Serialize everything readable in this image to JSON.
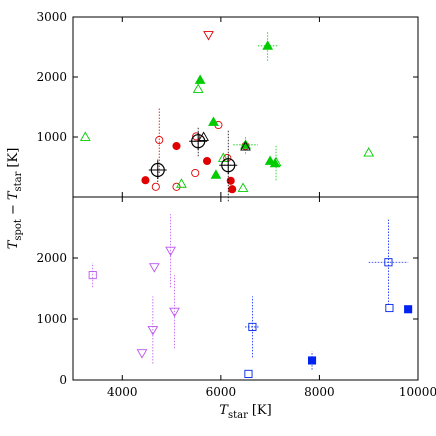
{
  "chart_data": {
    "type": "scatter",
    "xlabel": "T",
    "xlabel_sub": "star",
    "xlabel_unit": "[K]",
    "ylabel_parts": [
      "T",
      "spot",
      "−",
      "T",
      "star",
      "[K]"
    ],
    "xlim": [
      3000,
      10000
    ],
    "x_ticks": [
      4000,
      6000,
      8000,
      10000
    ],
    "panels": [
      {
        "name": "top",
        "ylim": [
          0,
          3000
        ],
        "y_ticks": [
          1000,
          2000,
          3000
        ],
        "series": [
          {
            "name": "red",
            "color": "#e00000",
            "points": [
              {
                "x": 4470,
                "y": 280,
                "marker": "circle",
                "filled": true
              },
              {
                "x": 5100,
                "y": 850,
                "marker": "circle",
                "filled": true
              },
              {
                "x": 5720,
                "y": 600,
                "marker": "circle",
                "filled": true
              },
              {
                "x": 6200,
                "y": 270,
                "marker": "circle",
                "filled": true
              },
              {
                "x": 6230,
                "y": 130,
                "marker": "circle",
                "filled": true
              },
              {
                "x": 4750,
                "y": 950,
                "marker": "circle",
                "filled": false,
                "yerr": 550
              },
              {
                "x": 4680,
                "y": 170,
                "marker": "circle",
                "filled": false
              },
              {
                "x": 5100,
                "y": 170,
                "marker": "circle",
                "filled": false
              },
              {
                "x": 5480,
                "y": 400,
                "marker": "circle",
                "filled": false
              },
              {
                "x": 5500,
                "y": 1010,
                "marker": "circle",
                "filled": false
              },
              {
                "x": 5750,
                "y": 2700,
                "marker": "triangle-down",
                "filled": false
              },
              {
                "x": 5950,
                "y": 1200,
                "marker": "circle",
                "filled": false
              },
              {
                "x": 6130,
                "y": 650,
                "marker": "circle",
                "filled": false
              },
              {
                "x": 6500,
                "y": 850,
                "marker": "circle",
                "filled": false
              }
            ]
          },
          {
            "name": "green",
            "color": "#00cc00",
            "points": [
              {
                "x": 5580,
                "y": 1950,
                "marker": "triangle",
                "filled": true
              },
              {
                "x": 5850,
                "y": 1250,
                "marker": "triangle",
                "filled": true
              },
              {
                "x": 5900,
                "y": 370,
                "marker": "triangle",
                "filled": true
              },
              {
                "x": 6950,
                "y": 2520,
                "marker": "triangle",
                "filled": true,
                "xerr": 200,
                "yerr": 250
              },
              {
                "x": 7000,
                "y": 600,
                "marker": "triangle",
                "filled": true
              },
              {
                "x": 7100,
                "y": 560,
                "marker": "triangle",
                "filled": true
              },
              {
                "x": 6500,
                "y": 870,
                "marker": "triangle",
                "filled": true,
                "xerr": 250,
                "yerr": 150
              },
              {
                "x": 3250,
                "y": 1000,
                "marker": "triangle",
                "filled": false
              },
              {
                "x": 5540,
                "y": 1800,
                "marker": "triangle",
                "filled": false
              },
              {
                "x": 5200,
                "y": 220,
                "marker": "triangle",
                "filled": false
              },
              {
                "x": 6450,
                "y": 150,
                "marker": "triangle",
                "filled": false
              },
              {
                "x": 6050,
                "y": 650,
                "marker": "triangle",
                "filled": false
              },
              {
                "x": 7120,
                "y": 580,
                "marker": "triangle",
                "filled": false,
                "yerr": 300
              },
              {
                "x": 9000,
                "y": 740,
                "marker": "triangle",
                "filled": false
              }
            ]
          },
          {
            "name": "black",
            "color": "#000000",
            "points": [
              {
                "x": 4720,
                "y": 450,
                "marker": "target",
                "filled": false,
                "xerr": 150,
                "yerr": 200
              },
              {
                "x": 5540,
                "y": 930,
                "marker": "target",
                "filled": false,
                "xerr": 150,
                "yerr": 250
              },
              {
                "x": 6150,
                "y": 530,
                "marker": "target",
                "filled": false,
                "xerr": 150,
                "yerr": 600
              },
              {
                "x": 5650,
                "y": 1000,
                "marker": "triangle",
                "filled": false
              },
              {
                "x": 6500,
                "y": 840,
                "marker": "triangle",
                "filled": false
              }
            ]
          }
        ]
      },
      {
        "name": "bottom",
        "ylim": [
          0,
          3000
        ],
        "y_ticks": [
          0,
          1000,
          2000
        ],
        "series": [
          {
            "name": "violet",
            "color": "#bb55ee",
            "points": [
              {
                "x": 3400,
                "y": 1720,
                "marker": "square",
                "filled": false,
                "yerr": 200
              },
              {
                "x": 4400,
                "y": 440,
                "marker": "triangle-down",
                "filled": false
              },
              {
                "x": 4620,
                "y": 820,
                "marker": "triangle-down",
                "filled": false,
                "yerr": 550
              },
              {
                "x": 4650,
                "y": 1850,
                "marker": "triangle-down",
                "filled": false
              },
              {
                "x": 4980,
                "y": 2120,
                "marker": "triangle-down",
                "filled": false,
                "yerr": 600
              },
              {
                "x": 5060,
                "y": 1120,
                "marker": "triangle-down",
                "filled": false,
                "yerr": 600
              }
            ]
          },
          {
            "name": "blue",
            "color": "#0022ee",
            "points": [
              {
                "x": 6560,
                "y": 100,
                "marker": "square",
                "filled": false
              },
              {
                "x": 6640,
                "y": 870,
                "marker": "square",
                "filled": false,
                "xerr": 150,
                "yerr": 500
              },
              {
                "x": 7850,
                "y": 320,
                "marker": "square",
                "filled": true,
                "yerr": 150
              },
              {
                "x": 9400,
                "y": 1930,
                "marker": "square",
                "filled": false,
                "xerr": 400,
                "yerr": 700
              },
              {
                "x": 9420,
                "y": 1180,
                "marker": "square",
                "filled": false
              },
              {
                "x": 9800,
                "y": 1160,
                "marker": "square",
                "filled": true
              }
            ]
          }
        ]
      }
    ]
  }
}
